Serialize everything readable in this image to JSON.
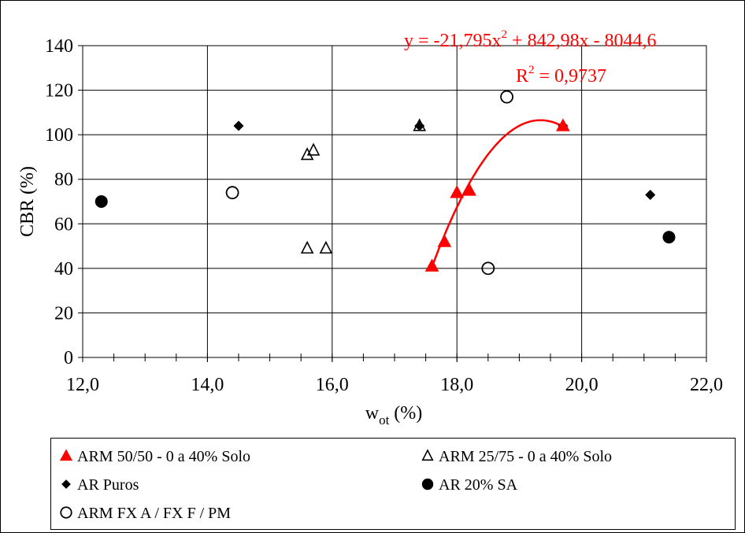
{
  "chart_data": {
    "type": "scatter",
    "xlabel_main": "w",
    "xlabel_sub": "ot",
    "xlabel_unit": " (%)",
    "ylabel": "CBR (%)",
    "xlim": [
      12.0,
      22.0
    ],
    "ylim": [
      0,
      140
    ],
    "x_ticks": [
      "12,0",
      "14,0",
      "16,0",
      "18,0",
      "20,0",
      "22,0"
    ],
    "y_ticks": [
      "0",
      "20",
      "40",
      "60",
      "80",
      "100",
      "120",
      "140"
    ],
    "grid": true,
    "legend_position": "bottom",
    "series": [
      {
        "name": "ARM 50/50 - 0 a 40% Solo",
        "marker": "filled-triangle",
        "color": "#ff0000",
        "points": [
          [
            17.6,
            41
          ],
          [
            17.8,
            52
          ],
          [
            18.0,
            74
          ],
          [
            18.2,
            75
          ],
          [
            19.7,
            104
          ]
        ]
      },
      {
        "name": "ARM 25/75 - 0 a 40% Solo",
        "marker": "open-triangle",
        "color": "#000000",
        "points": [
          [
            15.6,
            91
          ],
          [
            15.7,
            93
          ],
          [
            15.6,
            49
          ],
          [
            15.9,
            49
          ],
          [
            17.4,
            104
          ]
        ]
      },
      {
        "name": "AR Puros",
        "marker": "filled-diamond",
        "color": "#000000",
        "points": [
          [
            14.5,
            104
          ],
          [
            17.4,
            104
          ],
          [
            19.7,
            104
          ],
          [
            21.1,
            73
          ]
        ]
      },
      {
        "name": "AR 20% SA",
        "marker": "filled-circle",
        "color": "#000000",
        "points": [
          [
            12.3,
            70
          ],
          [
            21.4,
            54
          ]
        ]
      },
      {
        "name": "ARM FX A / FX F / PM",
        "marker": "open-circle",
        "color": "#000000",
        "points": [
          [
            14.4,
            74
          ],
          [
            18.8,
            117
          ],
          [
            18.5,
            40
          ]
        ]
      }
    ],
    "trendline": {
      "series": "ARM 50/50 - 0 a 40% Solo",
      "color": "#ff0000",
      "coefficients": [
        -21.795,
        842.98,
        -8044.6
      ],
      "x_range": [
        17.6,
        19.7
      ],
      "equation_pre": "y = -21,795x",
      "equation_sup": "2",
      "equation_post": " + 842,98x - 8044,6",
      "r2_pre": "R",
      "r2_sup": "2",
      "r2_post": " = 0,9737"
    }
  }
}
